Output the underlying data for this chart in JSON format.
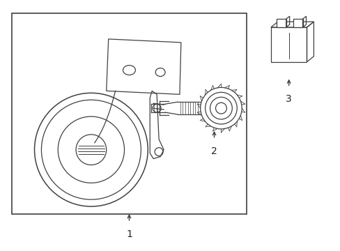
{
  "bg_color": "#ffffff",
  "line_color": "#404040",
  "text_color": "#222222",
  "fig_width": 4.89,
  "fig_height": 3.6,
  "dpi": 100,
  "label1": "1",
  "label2": "2",
  "label3": "3"
}
